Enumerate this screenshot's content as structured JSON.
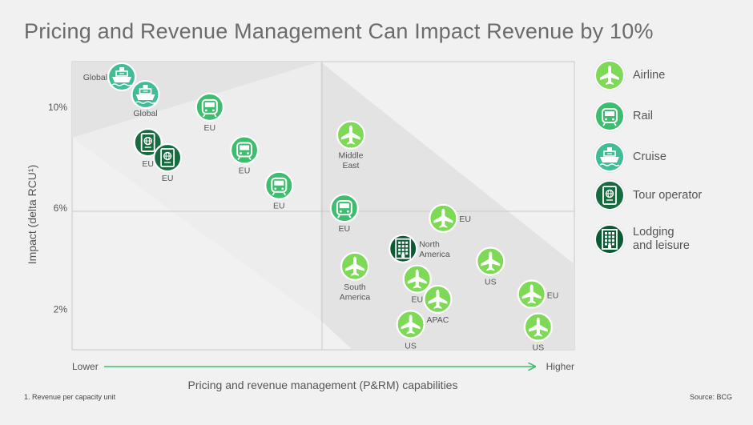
{
  "chart_data": {
    "type": "scatter",
    "title": "Pricing and Revenue Management Can Impact Revenue by 10%",
    "xlabel": "Pricing and revenue management (P&RM) capabilities",
    "x_low_label": "Lower",
    "x_high_label": "Higher",
    "ylabel": "Impact (delta RCU¹)",
    "yticks": [
      "10%",
      "6%",
      "2%"
    ],
    "ytick_values": [
      10,
      6,
      2
    ],
    "ylim": [
      0.4,
      11.8
    ],
    "xlim": [
      0,
      100
    ],
    "grid": true,
    "legend_position": "right",
    "colors": {
      "Airline": "#7ed957",
      "Rail": "#3ebd6f",
      "Cruise": "#3fbd96",
      "Tour operator": "#176c3f",
      "Lodging and leisure": "#0c5a33"
    },
    "series": [
      {
        "name": "Airline",
        "icon": "plane-icon",
        "points": [
          {
            "x": 55.5,
            "y": 8.9,
            "label": "Middle\nEast"
          },
          {
            "x": 73.9,
            "y": 5.6,
            "label": "EU"
          },
          {
            "x": 56.3,
            "y": 3.7,
            "label": "South\nAmerica"
          },
          {
            "x": 68.7,
            "y": 3.2,
            "label": "EU"
          },
          {
            "x": 72.8,
            "y": 2.4,
            "label": "APAC"
          },
          {
            "x": 83.3,
            "y": 3.9,
            "label": "US"
          },
          {
            "x": 67.4,
            "y": 1.4,
            "label": "US"
          },
          {
            "x": 91.5,
            "y": 2.6,
            "label": "EU"
          },
          {
            "x": 92.8,
            "y": 1.3,
            "label": "US"
          }
        ]
      },
      {
        "name": "Rail",
        "icon": "train-icon",
        "points": [
          {
            "x": 27.4,
            "y": 10.0,
            "label": "EU"
          },
          {
            "x": 34.3,
            "y": 8.3,
            "label": "EU"
          },
          {
            "x": 41.2,
            "y": 6.9,
            "label": "EU"
          },
          {
            "x": 54.2,
            "y": 6.0,
            "label": "EU"
          }
        ]
      },
      {
        "name": "Cruise",
        "icon": "ship-icon",
        "points": [
          {
            "x": 9.9,
            "y": 11.2,
            "label": "Global"
          },
          {
            "x": 14.6,
            "y": 10.5,
            "label": "Global"
          }
        ]
      },
      {
        "name": "Tour operator",
        "icon": "passport-icon",
        "points": [
          {
            "x": 15.1,
            "y": 8.6,
            "label": "EU"
          },
          {
            "x": 19.0,
            "y": 8.0,
            "label": "EU"
          }
        ]
      },
      {
        "name": "Lodging and leisure",
        "icon": "building-icon",
        "points": [
          {
            "x": 65.9,
            "y": 4.4,
            "label": "North\nAmerica"
          }
        ]
      }
    ]
  },
  "legend": {
    "items": [
      {
        "label": "Airline",
        "icon": "plane-icon",
        "color": "#7ed957"
      },
      {
        "label": "Rail",
        "icon": "train-icon",
        "color": "#3ebd6f"
      },
      {
        "label": "Cruise",
        "icon": "ship-icon",
        "color": "#3fbd96"
      },
      {
        "label": "Tour operator",
        "icon": "passport-icon",
        "color": "#176c3f"
      },
      {
        "label": "Lodging\nand leisure",
        "icon": "building-icon",
        "color": "#0c5a33"
      }
    ]
  },
  "footnote": "1. Revenue per capacity unit",
  "source": "Source: BCG"
}
